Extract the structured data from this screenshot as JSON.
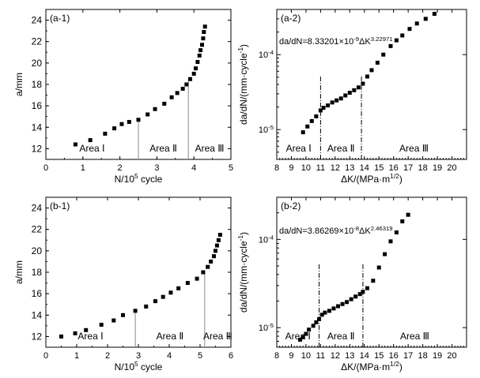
{
  "chart_data": [
    {
      "type": "scatter",
      "panel_label": "(a-1)",
      "xlabel": "N/10^5 cycle",
      "ylabel": "a/mm",
      "xlim": [
        0,
        5
      ],
      "ylim": [
        11,
        25
      ],
      "xticks": [
        "0",
        "1",
        "2",
        "3",
        "4",
        "5"
      ],
      "yticks": [
        "12",
        "14",
        "16",
        "18",
        "20",
        "22",
        "24"
      ],
      "area_labels": [
        "Area Ⅰ",
        "Area Ⅱ",
        "Area Ⅲ"
      ],
      "area_boundaries": [
        2.5,
        3.85
      ],
      "x": [
        0.8,
        1.2,
        1.6,
        1.85,
        2.05,
        2.25,
        2.5,
        2.75,
        2.95,
        3.2,
        3.4,
        3.55,
        3.7,
        3.8,
        3.9,
        4.0,
        4.05,
        4.1,
        4.15,
        4.18,
        4.22,
        4.25,
        4.27,
        4.3
      ],
      "y": [
        12.4,
        12.8,
        13.4,
        13.9,
        14.3,
        14.5,
        14.7,
        15.2,
        15.7,
        16.2,
        16.8,
        17.2,
        17.6,
        18.0,
        18.5,
        19.0,
        19.5,
        20.1,
        20.7,
        21.2,
        21.7,
        22.3,
        22.9,
        23.4
      ]
    },
    {
      "type": "scatter",
      "panel_label": "(a-2)",
      "xlabel": "ΔK/(MPa·m^1/2)",
      "ylabel": "da/dN/(mm·cycle^-1)",
      "yscale": "log",
      "xlim": [
        8,
        21
      ],
      "ylim": [
        4e-06,
        0.0004
      ],
      "xticks": [
        "8",
        "9",
        "10",
        "11",
        "12",
        "13",
        "14",
        "15",
        "16",
        "17",
        "18",
        "19",
        "20"
      ],
      "yticks": [
        "10^-5",
        "10^-4"
      ],
      "equation": "da/dN=8.33201×10^-9ΔK^3.22971",
      "area_labels": [
        "Area Ⅰ",
        "Area Ⅱ",
        "Area Ⅲ"
      ],
      "area_boundaries": [
        11.0,
        13.8
      ],
      "x": [
        9.8,
        10.1,
        10.4,
        10.7,
        11.0,
        11.2,
        11.5,
        11.8,
        12.1,
        12.4,
        12.7,
        13.0,
        13.3,
        13.6,
        13.9,
        14.2,
        14.5,
        14.9,
        15.3,
        15.8,
        16.2,
        16.6,
        17.1,
        17.6,
        18.2,
        18.8
      ],
      "y": [
        9.2e-06,
        1.1e-05,
        1.3e-05,
        1.5e-05,
        1.8e-05,
        1.95e-05,
        2.1e-05,
        2.3e-05,
        2.45e-05,
        2.6e-05,
        2.85e-05,
        3.1e-05,
        3.35e-05,
        3.65e-05,
        4.1e-05,
        5.1e-05,
        6.2e-05,
        7.8e-05,
        0.0001,
        0.00013,
        0.000155,
        0.00018,
        0.00022,
        0.00026,
        0.0003,
        0.00035
      ]
    },
    {
      "type": "scatter",
      "panel_label": "(b-1)",
      "xlabel": "N/10^5 cycle",
      "ylabel": "a/mm",
      "xlim": [
        0,
        6
      ],
      "ylim": [
        11,
        25
      ],
      "xticks": [
        "0",
        "1",
        "2",
        "3",
        "4",
        "5",
        "6"
      ],
      "yticks": [
        "12",
        "14",
        "16",
        "18",
        "20",
        "22",
        "24"
      ],
      "area_labels": [
        "Area Ⅰ",
        "Area Ⅱ",
        "Area Ⅲ"
      ],
      "area_boundaries": [
        2.9,
        5.15
      ],
      "x": [
        0.5,
        0.95,
        1.3,
        1.8,
        2.2,
        2.5,
        2.9,
        3.25,
        3.55,
        3.8,
        4.05,
        4.3,
        4.6,
        4.9,
        5.1,
        5.25,
        5.35,
        5.45,
        5.5,
        5.55,
        5.6,
        5.65
      ],
      "y": [
        12.0,
        12.3,
        12.6,
        13.1,
        13.5,
        14.0,
        14.4,
        14.8,
        15.3,
        15.7,
        16.1,
        16.5,
        17.0,
        17.4,
        18.0,
        18.5,
        19.0,
        19.5,
        20.0,
        20.5,
        21.0,
        21.5
      ]
    },
    {
      "type": "scatter",
      "panel_label": "(b-2)",
      "xlabel": "ΔK/(MPa·m^1/2)",
      "ylabel": "da/dN/(mm·cycle^-1)",
      "yscale": "log",
      "xlim": [
        8,
        21
      ],
      "ylim": [
        6e-06,
        0.0003
      ],
      "xticks": [
        "8",
        "9",
        "10",
        "11",
        "12",
        "13",
        "14",
        "15",
        "16",
        "17",
        "18",
        "19",
        "20"
      ],
      "yticks": [
        "10^-5",
        "10^-4"
      ],
      "equation": "da/dN=3.86269×10^-8ΔK^2.46319",
      "area_labels": [
        "Area Ⅰ",
        "Area Ⅱ",
        "Area Ⅲ"
      ],
      "area_boundaries": [
        10.9,
        13.9
      ],
      "x": [
        9.6,
        9.8,
        10.0,
        10.2,
        10.5,
        10.7,
        10.9,
        11.1,
        11.3,
        11.6,
        11.9,
        12.2,
        12.5,
        12.8,
        13.1,
        13.4,
        13.7,
        13.9,
        14.2,
        14.6,
        15.0,
        15.4,
        15.8,
        16.2,
        16.6,
        17.0
      ],
      "y": [
        7.3e-06,
        7.8e-06,
        8.5e-06,
        9.5e-06,
        1.05e-05,
        1.15e-05,
        1.25e-05,
        1.4e-05,
        1.48e-05,
        1.55e-05,
        1.65e-05,
        1.75e-05,
        1.85e-05,
        1.95e-05,
        2.1e-05,
        2.25e-05,
        2.4e-05,
        2.55e-05,
        2.8e-05,
        3.4e-05,
        4.8e-05,
        6.8e-05,
        9.5e-05,
        0.00012,
        0.00016,
        0.00019
      ]
    }
  ]
}
